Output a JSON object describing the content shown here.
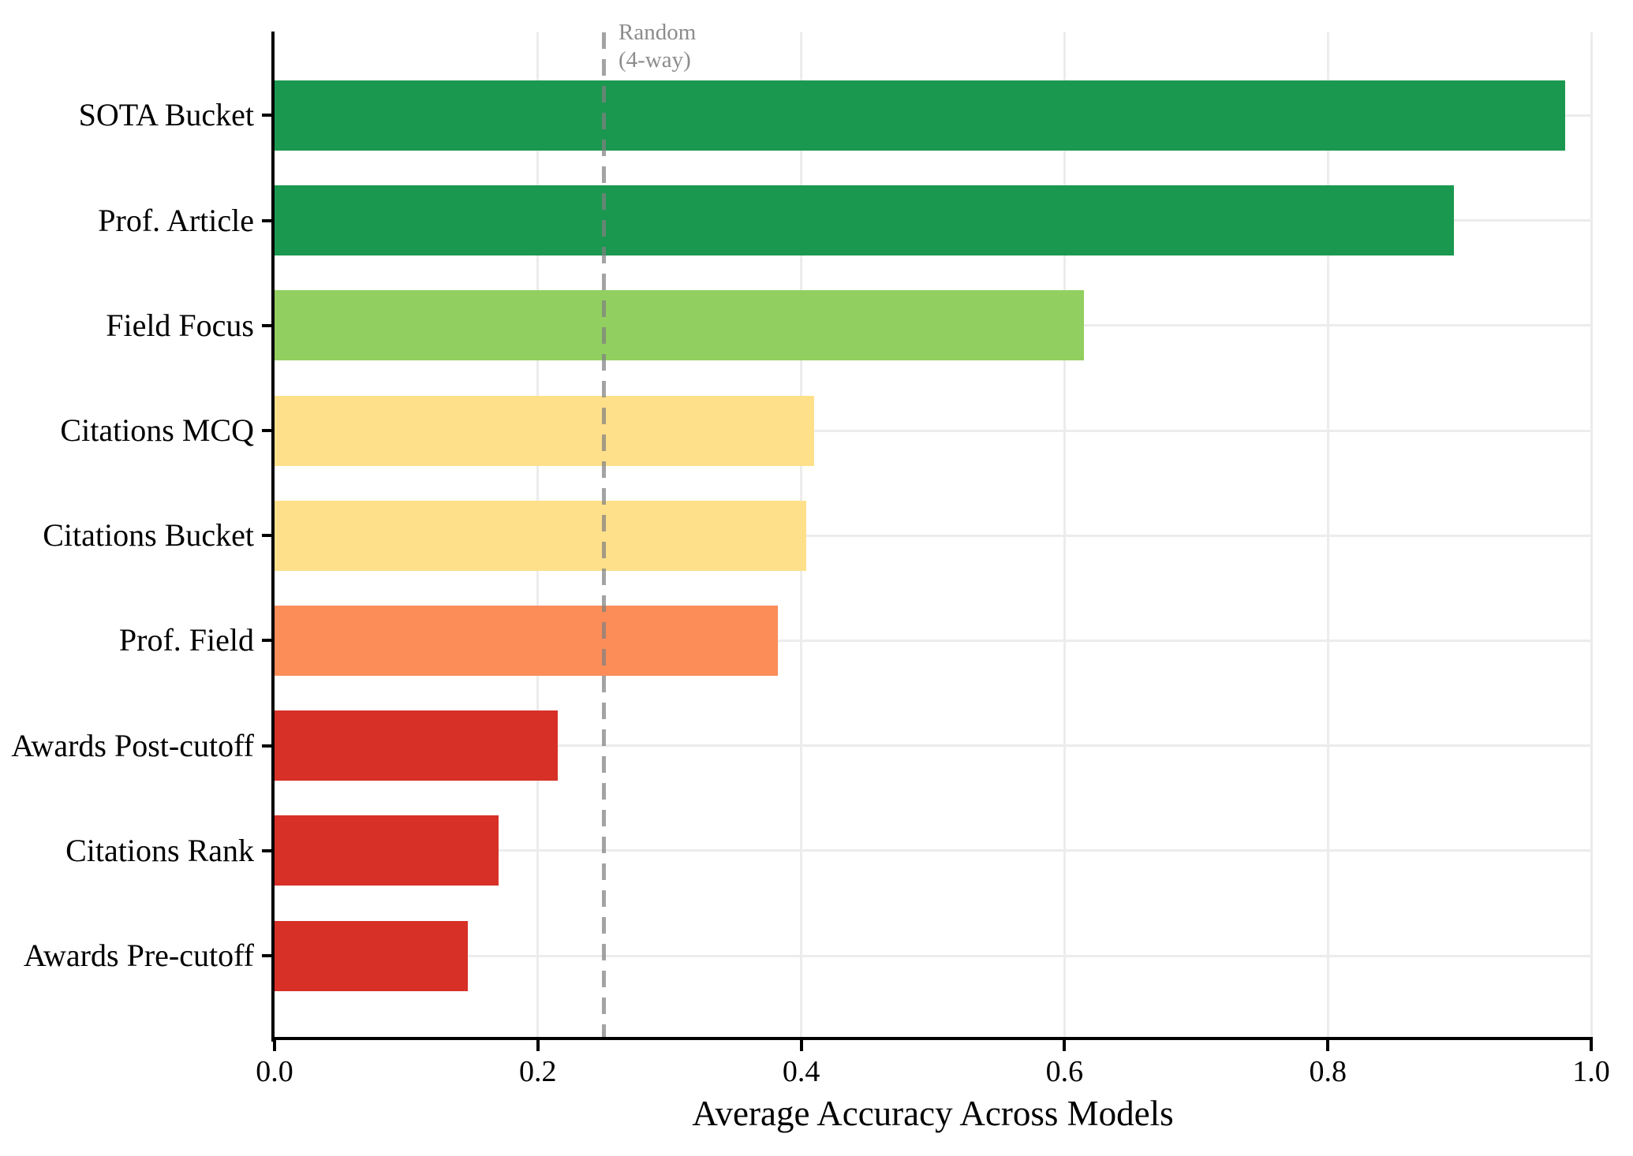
{
  "chart_data": {
    "type": "bar",
    "orientation": "horizontal",
    "title": "",
    "xlabel": "Average Accuracy Across Models",
    "ylabel": "",
    "xlim": [
      0.0,
      1.0
    ],
    "grid": true,
    "legend": "none",
    "categories": [
      "SOTA Bucket",
      "Prof. Article",
      "Field Focus",
      "Citations MCQ",
      "Citations Bucket",
      "Prof. Field",
      "Awards Post-cutoff",
      "Citations Rank",
      "Awards Pre-cutoff"
    ],
    "values": [
      0.98,
      0.896,
      0.615,
      0.41,
      0.404,
      0.382,
      0.215,
      0.17,
      0.147
    ],
    "bar_colors": [
      "#1a9850",
      "#1a9850",
      "#91cf60",
      "#fee08b",
      "#fee08b",
      "#fc8d59",
      "#d73027",
      "#d73027",
      "#d73027"
    ],
    "xtick_labels": [
      "0.0",
      "0.2",
      "0.4",
      "0.6",
      "0.8",
      "1.0"
    ],
    "xtick_values": [
      0.0,
      0.2,
      0.4,
      0.6,
      0.8,
      1.0
    ],
    "reference_line": {
      "value": 0.25,
      "label_line1": "Random",
      "label_line2": "(4-way)",
      "style": "dashed",
      "color": "#8c8c8c"
    },
    "style_colors": {
      "grid": "#ececec",
      "axis": "#000000",
      "reference_dash": "rgba(128,128,128,0.72)",
      "background": "#ffffff"
    }
  }
}
